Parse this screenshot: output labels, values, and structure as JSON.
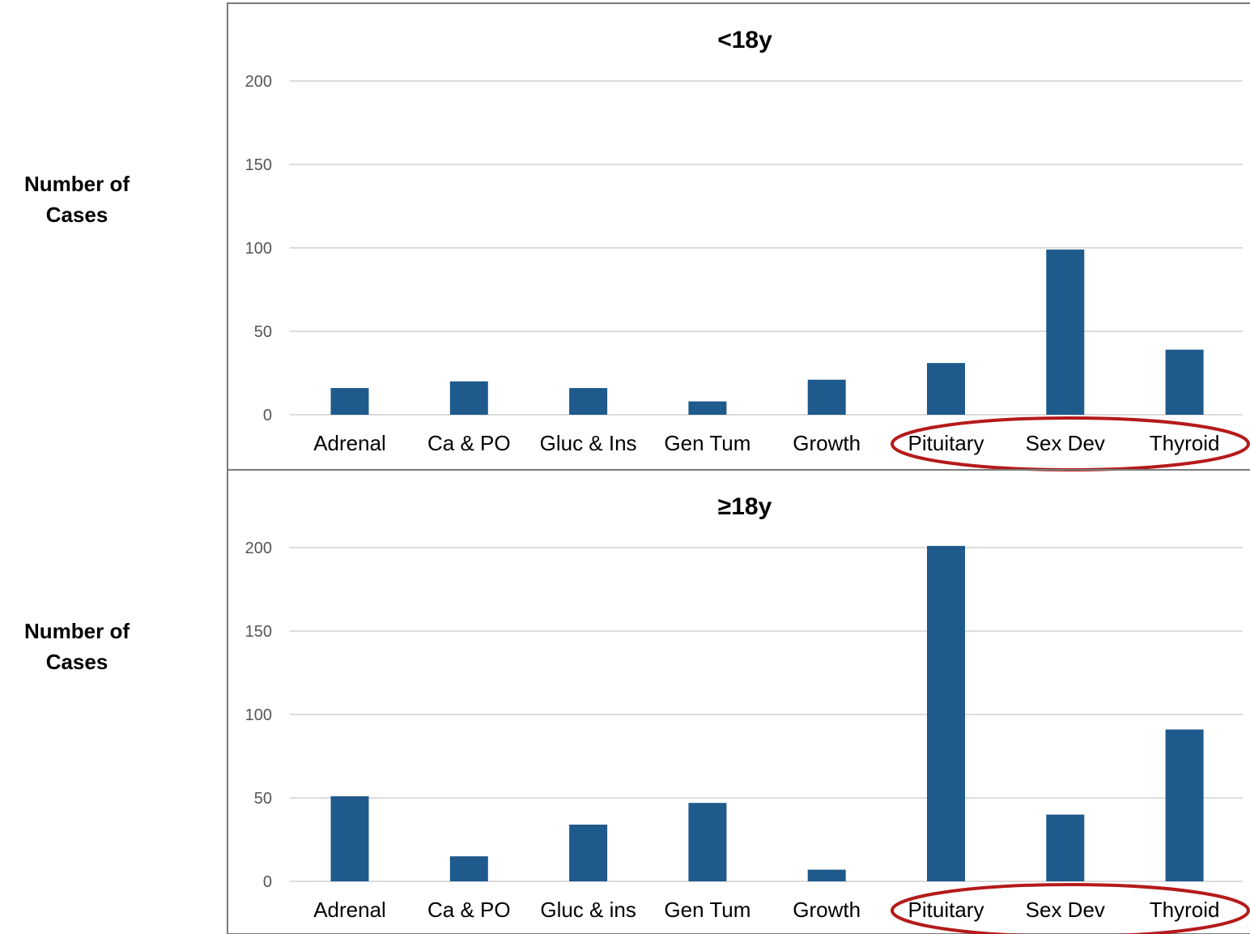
{
  "colors": {
    "bar": "#1f5a8c",
    "grid": "#d0d0d0",
    "frame": "#7a7a7a",
    "highlight": "#b51a1a"
  },
  "ylabels": {
    "top": [
      "Number of",
      "Cases"
    ],
    "bottom": [
      "Number of",
      "Cases"
    ]
  },
  "chart_data": [
    {
      "type": "bar",
      "title": "<18y",
      "ylabel": "Number of Cases",
      "ylim": [
        0,
        200
      ],
      "yticks": [
        0,
        50,
        100,
        150,
        200
      ],
      "grid": true,
      "categories": [
        "Adrenal",
        "Ca & PO",
        "Gluc & Ins",
        "Gen Tum",
        "Growth",
        "Pituitary",
        "Sex Dev",
        "Thyroid"
      ],
      "values": [
        16,
        20,
        16,
        8,
        21,
        31,
        99,
        39
      ],
      "highlighted_categories": [
        "Pituitary",
        "Sex Dev",
        "Thyroid"
      ]
    },
    {
      "type": "bar",
      "title": "≥18y",
      "ylabel": "Number of Cases",
      "ylim": [
        0,
        200
      ],
      "yticks": [
        0,
        50,
        100,
        150,
        200
      ],
      "grid": true,
      "categories": [
        "Adrenal",
        "Ca & PO",
        "Gluc & ins",
        "Gen Tum",
        "Growth",
        "Pituitary",
        "Sex Dev",
        "Thyroid"
      ],
      "values": [
        51,
        15,
        34,
        47,
        7,
        201,
        40,
        91
      ],
      "highlighted_categories": [
        "Pituitary",
        "Sex Dev",
        "Thyroid"
      ]
    }
  ]
}
